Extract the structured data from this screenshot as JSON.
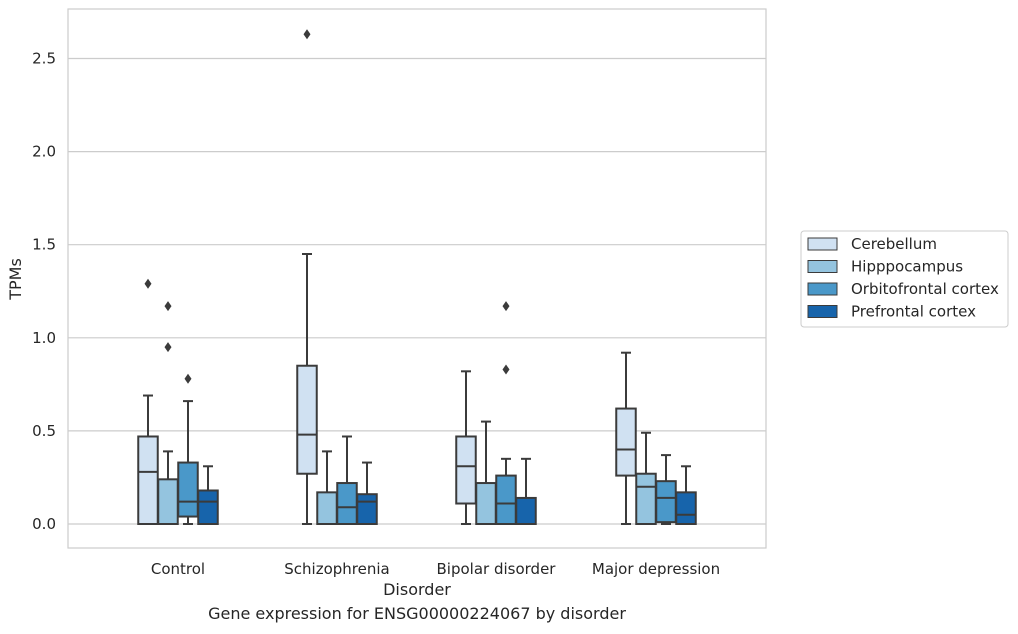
{
  "caption": "Gene expression for ENSG00000224067 by disorder",
  "chart_data": {
    "type": "box",
    "xlabel": "Disorder",
    "ylabel": "TPMs",
    "categories": [
      "Control",
      "Schizophrenia",
      "Bipolar disorder",
      "Major depression"
    ],
    "yticks": [
      "0.0",
      "0.5",
      "1.0",
      "1.5",
      "2.0",
      "2.5"
    ],
    "ylim": [
      -0.13,
      2.77
    ],
    "grid": "horizontal",
    "legend_position": "right",
    "series": [
      {
        "name": "Cerebellum",
        "color": "#d0e1f2",
        "boxes": [
          {
            "whislo": 0.0,
            "q1": 0.0,
            "median": 0.28,
            "q3": 0.47,
            "whishi": 0.69,
            "fliers": [
              1.29
            ]
          },
          {
            "whislo": 0.0,
            "q1": 0.27,
            "median": 0.48,
            "q3": 0.85,
            "whishi": 1.45,
            "fliers": [
              2.63
            ]
          },
          {
            "whislo": 0.0,
            "q1": 0.11,
            "median": 0.31,
            "q3": 0.47,
            "whishi": 0.82,
            "fliers": []
          },
          {
            "whislo": 0.0,
            "q1": 0.26,
            "median": 0.4,
            "q3": 0.62,
            "whishi": 0.92,
            "fliers": []
          }
        ]
      },
      {
        "name": "Hipppocampus",
        "color": "#94c4df",
        "boxes": [
          {
            "whislo": 0.0,
            "q1": 0.0,
            "median": 0.0,
            "q3": 0.24,
            "whishi": 0.39,
            "fliers": [
              1.17,
              0.95
            ]
          },
          {
            "whislo": 0.0,
            "q1": 0.0,
            "median": 0.0,
            "q3": 0.17,
            "whishi": 0.39,
            "fliers": []
          },
          {
            "whislo": 0.0,
            "q1": 0.0,
            "median": 0.0,
            "q3": 0.22,
            "whishi": 0.55,
            "fliers": []
          },
          {
            "whislo": 0.0,
            "q1": 0.0,
            "median": 0.2,
            "q3": 0.27,
            "whishi": 0.49,
            "fliers": []
          }
        ]
      },
      {
        "name": "Orbitofrontal cortex",
        "color": "#4a98c9",
        "boxes": [
          {
            "whislo": 0.0,
            "q1": 0.04,
            "median": 0.12,
            "q3": 0.33,
            "whishi": 0.66,
            "fliers": [
              0.78
            ]
          },
          {
            "whislo": 0.0,
            "q1": 0.0,
            "median": 0.09,
            "q3": 0.22,
            "whishi": 0.47,
            "fliers": []
          },
          {
            "whislo": 0.0,
            "q1": 0.0,
            "median": 0.11,
            "q3": 0.26,
            "whishi": 0.35,
            "fliers": [
              1.17,
              0.83
            ]
          },
          {
            "whislo": 0.0,
            "q1": 0.01,
            "median": 0.14,
            "q3": 0.23,
            "whishi": 0.37,
            "fliers": []
          }
        ]
      },
      {
        "name": "Prefrontal cortex",
        "color": "#1764ab",
        "boxes": [
          {
            "whislo": 0.0,
            "q1": 0.0,
            "median": 0.12,
            "q3": 0.18,
            "whishi": 0.31,
            "fliers": []
          },
          {
            "whislo": 0.0,
            "q1": 0.0,
            "median": 0.12,
            "q3": 0.16,
            "whishi": 0.33,
            "fliers": []
          },
          {
            "whislo": 0.0,
            "q1": 0.0,
            "median": 0.0,
            "q3": 0.14,
            "whishi": 0.35,
            "fliers": []
          },
          {
            "whislo": 0.0,
            "q1": 0.0,
            "median": 0.05,
            "q3": 0.17,
            "whishi": 0.31,
            "fliers": []
          }
        ]
      }
    ]
  }
}
